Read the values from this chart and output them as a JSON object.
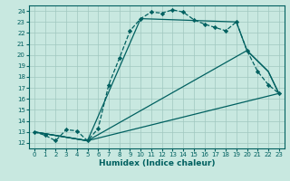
{
  "xlabel": "Humidex (Indice chaleur)",
  "background_color": "#c8e8e0",
  "grid_color": "#a0c8c0",
  "line_color": "#006060",
  "xlim": [
    -0.5,
    23.5
  ],
  "ylim": [
    11.5,
    24.5
  ],
  "xticks": [
    0,
    1,
    2,
    3,
    4,
    5,
    6,
    7,
    8,
    9,
    10,
    11,
    12,
    13,
    14,
    15,
    16,
    17,
    18,
    19,
    20,
    21,
    22,
    23
  ],
  "yticks": [
    12,
    13,
    14,
    15,
    16,
    17,
    18,
    19,
    20,
    21,
    22,
    23,
    24
  ],
  "line1_x": [
    0,
    1,
    2,
    3,
    4,
    5,
    6,
    7,
    8,
    9,
    10,
    11,
    12,
    13,
    14,
    15,
    16,
    17,
    18,
    19,
    20,
    21,
    22,
    23
  ],
  "line1_y": [
    13.0,
    12.7,
    12.2,
    13.2,
    13.1,
    12.2,
    13.3,
    17.3,
    19.7,
    22.2,
    23.3,
    23.9,
    23.8,
    24.1,
    23.9,
    23.2,
    22.8,
    22.5,
    22.2,
    23.0,
    20.4,
    18.5,
    17.3,
    16.5
  ],
  "line2_x": [
    0,
    5,
    23
  ],
  "line2_y": [
    13.0,
    12.2,
    16.5
  ],
  "line3_x": [
    0,
    5,
    20,
    22,
    23
  ],
  "line3_y": [
    13.0,
    12.2,
    20.4,
    18.5,
    16.5
  ],
  "line4_x": [
    0,
    5,
    10,
    19,
    20,
    22,
    23
  ],
  "line4_y": [
    13.0,
    12.2,
    23.3,
    23.0,
    20.4,
    18.5,
    16.5
  ]
}
